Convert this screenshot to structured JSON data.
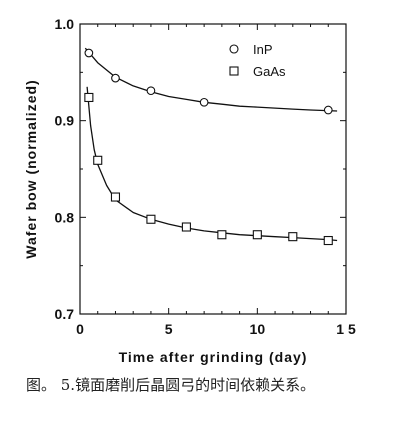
{
  "caption": "图。 5.镜面磨削后晶圆弓的时间依赖关系。",
  "chart_data": {
    "type": "scatter",
    "xlabel": "Time after grinding (day)",
    "ylabel": "Wafer bow (normalized)",
    "xlim": [
      0,
      15
    ],
    "ylim": [
      0.7,
      1.0
    ],
    "xticks": [
      0,
      5,
      10,
      15
    ],
    "xtick_labels": [
      "0",
      "5",
      "10",
      "1 5"
    ],
    "yticks": [
      0.7,
      0.8,
      0.9,
      1.0
    ],
    "ytick_labels": [
      "0.7",
      "0.8",
      "0.9",
      "1.0"
    ],
    "legend_position": "top-right",
    "series": [
      {
        "name": "InP",
        "marker": "circle",
        "x": [
          0.5,
          2,
          4,
          7,
          14
        ],
        "y": [
          0.97,
          0.944,
          0.931,
          0.919,
          0.911
        ],
        "curve": {
          "x": [
            0.3,
            1,
            2,
            3,
            4,
            5,
            6,
            7,
            8,
            9,
            10,
            11,
            12,
            13,
            14.5
          ],
          "y": [
            0.975,
            0.96,
            0.945,
            0.936,
            0.93,
            0.925,
            0.922,
            0.919,
            0.917,
            0.915,
            0.914,
            0.913,
            0.912,
            0.911,
            0.91
          ]
        }
      },
      {
        "name": "GaAs",
        "marker": "square",
        "x": [
          0.5,
          1,
          2,
          4,
          6,
          8,
          10,
          12,
          14
        ],
        "y": [
          0.924,
          0.859,
          0.821,
          0.798,
          0.79,
          0.782,
          0.782,
          0.78,
          0.776
        ],
        "curve": {
          "x": [
            0.4,
            0.6,
            0.8,
            1,
            1.5,
            2,
            3,
            4,
            5,
            6,
            7,
            8,
            9,
            10,
            11,
            12,
            13,
            14,
            14.5
          ],
          "y": [
            0.935,
            0.895,
            0.87,
            0.855,
            0.833,
            0.818,
            0.805,
            0.798,
            0.793,
            0.789,
            0.786,
            0.784,
            0.782,
            0.781,
            0.78,
            0.779,
            0.778,
            0.777,
            0.776
          ]
        }
      }
    ]
  }
}
